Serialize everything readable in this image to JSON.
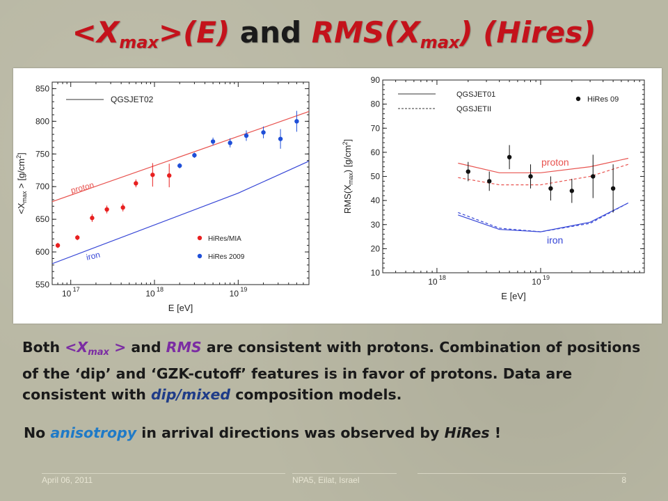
{
  "slide": {
    "title_part1": "<X",
    "title_sub1": "max",
    "title_part2": ">(E)",
    "title_and": " and ",
    "title_part3": "RMS(X",
    "title_sub2": "max",
    "title_part4": ")  (Hires)",
    "body_both": "Both ",
    "body_xmax": "<X",
    "body_xmax_sub": "max",
    "body_xmax_end": " >",
    "body_and": " and ",
    "body_rms": "RMS",
    "body_rest1": " are consistent with protons. Combination of positions of the ‘dip’ and ‘GZK-cutoff’ features is in favor of protons. Data are consistent with ",
    "body_dip": "dip/mixed",
    "body_rest2": " composition models.",
    "note_no": "No ",
    "note_aniso": "anisotropy",
    "note_mid": " in arrival directions was observed by ",
    "note_hires": "HiRes",
    "note_end": " !",
    "footer_date": "April 06, 2011",
    "footer_conf": "NPA5,  Eilat, Israel",
    "footer_page": "8"
  },
  "colors": {
    "title_red": "#c4121b",
    "proton_red": "#e8534f",
    "iron_blue": "#3545d6",
    "hires_mia_red": "#e82020",
    "hires2009_blue": "#1f4fd8",
    "black": "#111111"
  },
  "chart_data": [
    {
      "type": "scatter",
      "xlabel": "E [eV]",
      "ylabel": "<X",
      "ylabel_sub": "max",
      "ylabel_end": " > [g/cm",
      "ylabel_sup": "2",
      "ylabel_close": "]",
      "x_scale": "log",
      "xlim": [
        6e+16,
        7e+19
      ],
      "ylim": [
        550,
        860
      ],
      "x_ticks": [
        {
          "v": 1e+17,
          "b": "10",
          "e": "17"
        },
        {
          "v": 1e+18,
          "b": "10",
          "e": "18"
        },
        {
          "v": 1e+19,
          "b": "10",
          "e": "19"
        }
      ],
      "y_ticks": [
        550,
        600,
        650,
        700,
        750,
        800,
        850
      ],
      "legend_line_label": "QGSJET02",
      "curve_labels": {
        "proton": "proton",
        "iron": "iron"
      },
      "legend_points": [
        "HiRes/MIA",
        "HiRes 2009"
      ],
      "lines": [
        {
          "name": "proton",
          "color": "#e8534f",
          "x": [
            6e+16,
            7e+19
          ],
          "y": [
            677,
            815
          ]
        },
        {
          "name": "iron",
          "color": "#3545d6",
          "x": [
            6e+16,
            1e+19,
            7e+19
          ],
          "y": [
            582,
            690,
            739
          ]
        }
      ],
      "series": [
        {
          "name": "HiRes/MIA",
          "color": "#e82020",
          "x": [
            7e+16,
            1.2e+17,
            1.8e+17,
            2.7e+17,
            4.2e+17,
            6e+17,
            9.5e+17,
            1.5e+18
          ],
          "y": [
            610,
            622,
            652,
            665,
            668,
            705,
            718,
            717
          ],
          "err": [
            4,
            4,
            6,
            6,
            6,
            6,
            18,
            18
          ]
        },
        {
          "name": "HiRes 2009",
          "color": "#1f4fd8",
          "x": [
            2e+18,
            3e+18,
            5e+18,
            8e+18,
            1.25e+19,
            2e+19,
            3.2e+19,
            5e+19
          ],
          "y": [
            732,
            748,
            769,
            767,
            778,
            783,
            773,
            800
          ],
          "err": [
            4,
            4,
            6,
            7,
            8,
            9,
            15,
            16
          ]
        }
      ]
    },
    {
      "type": "scatter",
      "xlabel": "E [eV]",
      "ylabel": "RMS(X",
      "ylabel_sub": "max",
      "ylabel_end": ") [g/cm",
      "ylabel_sup": "2",
      "ylabel_close": "]",
      "x_scale": "log",
      "xlim": [
        3e+17,
        1e+20
      ],
      "ylim": [
        10,
        90
      ],
      "x_ticks": [
        {
          "v": 1e+18,
          "b": "10",
          "e": "18"
        },
        {
          "v": 1e+19,
          "b": "10",
          "e": "19"
        }
      ],
      "y_ticks": [
        10,
        20,
        30,
        40,
        50,
        60,
        70,
        80,
        90
      ],
      "legend_line_labels": [
        "QGSJET01",
        "QGSJETII"
      ],
      "curve_labels": {
        "proton": "proton",
        "iron": "iron"
      },
      "legend_points": [
        "HiRes 09"
      ],
      "lines": [
        {
          "name": "proton",
          "color": "#e8534f",
          "dash": false,
          "x": [
            1.6e+18,
            4e+18,
            1e+19,
            3e+19,
            7e+19
          ],
          "y": [
            55.5,
            51.5,
            51.5,
            54,
            57.5
          ]
        },
        {
          "name": "proton",
          "color": "#e8534f",
          "dash": true,
          "x": [
            1.6e+18,
            4e+18,
            1e+19,
            3e+19,
            7e+19
          ],
          "y": [
            49.5,
            46.5,
            46.5,
            50,
            55
          ]
        },
        {
          "name": "iron",
          "color": "#3545d6",
          "dash": false,
          "x": [
            1.6e+18,
            4e+18,
            1e+19,
            3e+19,
            7e+19
          ],
          "y": [
            34,
            28,
            27,
            31,
            39
          ]
        },
        {
          "name": "iron",
          "color": "#3545d6",
          "dash": true,
          "x": [
            1.6e+18,
            4e+18,
            1e+19,
            3e+19,
            7e+19
          ],
          "y": [
            35,
            28.5,
            27,
            30.5,
            39
          ]
        }
      ],
      "series": [
        {
          "name": "HiRes 09",
          "color": "#111111",
          "x": [
            2e+18,
            3.2e+18,
            5e+18,
            8e+18,
            1.25e+19,
            2e+19,
            3.2e+19,
            5e+19
          ],
          "y": [
            52,
            48,
            58,
            50,
            45,
            44,
            50,
            45
          ],
          "err": [
            4,
            4,
            5,
            5,
            5,
            5,
            9,
            10
          ]
        }
      ]
    }
  ]
}
